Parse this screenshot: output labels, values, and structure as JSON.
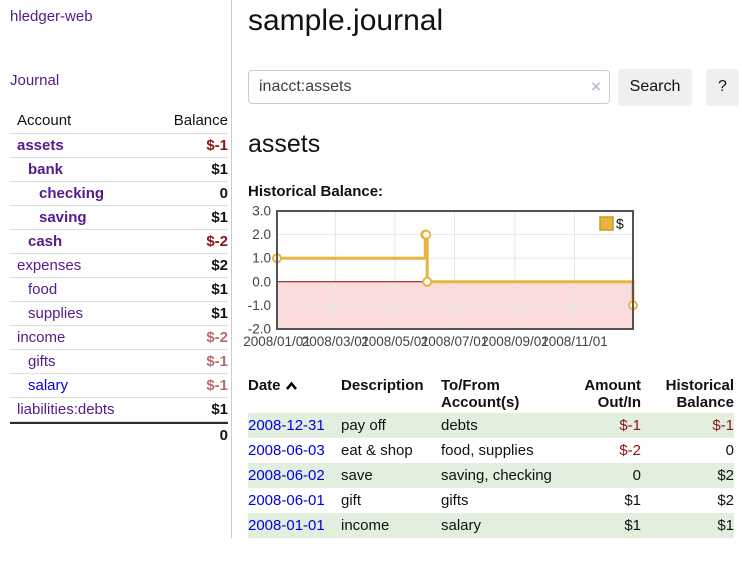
{
  "app": {
    "brand": "hledger-web",
    "nav": {
      "journal": "Journal"
    }
  },
  "sidebar": {
    "headers": {
      "account": "Account",
      "balance": "Balance"
    },
    "accounts": [
      {
        "name": "assets",
        "indent": 1,
        "bold": true,
        "balance": "$-1",
        "balance_style": "neg",
        "link_style": "visited"
      },
      {
        "name": "bank",
        "indent": 2,
        "bold": true,
        "balance": "$1",
        "balance_style": "pos",
        "link_style": "visited"
      },
      {
        "name": "checking",
        "indent": 3,
        "bold": true,
        "balance": "0",
        "balance_style": "pos",
        "link_style": "visited"
      },
      {
        "name": "saving",
        "indent": 3,
        "bold": true,
        "balance": "$1",
        "balance_style": "pos",
        "link_style": "visited"
      },
      {
        "name": "cash",
        "indent": 2,
        "bold": true,
        "balance": "$-2",
        "balance_style": "neg",
        "link_style": "visited"
      },
      {
        "name": "expenses",
        "indent": 1,
        "bold": false,
        "balance": "$2",
        "balance_style": "pos",
        "link_style": "visited"
      },
      {
        "name": "food",
        "indent": 2,
        "bold": false,
        "balance": "$1",
        "balance_style": "pos",
        "link_style": "visited"
      },
      {
        "name": "supplies",
        "indent": 2,
        "bold": false,
        "balance": "$1",
        "balance_style": "pos",
        "link_style": "visited"
      },
      {
        "name": "income",
        "indent": 1,
        "bold": false,
        "balance": "$-2",
        "balance_style": "neg-dim",
        "link_style": "visited"
      },
      {
        "name": "gifts",
        "indent": 2,
        "bold": false,
        "balance": "$-1",
        "balance_style": "neg-dim",
        "link_style": "visited"
      },
      {
        "name": "salary",
        "indent": 2,
        "bold": false,
        "balance": "$-1",
        "balance_style": "neg-dim",
        "link_style": "unvisited"
      },
      {
        "name": "liabilities:debts",
        "indent": 1,
        "bold": false,
        "balance": "$1",
        "balance_style": "pos",
        "link_style": "visited"
      }
    ],
    "total": "0"
  },
  "header": {
    "title": "sample.journal"
  },
  "search": {
    "value": "inacct:assets",
    "clear_icon": "×",
    "button_label": "Search",
    "help_label": "?"
  },
  "account_page": {
    "heading": "assets",
    "chart_label": "Historical Balance:"
  },
  "chart_data": {
    "type": "line",
    "title": "Historical Balance:",
    "x_range": [
      "2008-01-01",
      "2008-12-31"
    ],
    "ylim": [
      -2,
      3
    ],
    "y_tick_labels": [
      "3.0",
      "2.0",
      "1.0",
      "0.0",
      "-1.0",
      "-2.0"
    ],
    "x_ticks": [
      {
        "pos": "2008-01-01",
        "label": "2008/01/01"
      },
      {
        "pos": "2008-03-01",
        "label": "2008/03/01"
      },
      {
        "pos": "2008-05-01",
        "label": "2008/05/01"
      },
      {
        "pos": "2008-07-01",
        "label": "2008/07/01"
      },
      {
        "pos": "2008-09-01",
        "label": "2008/09/01"
      },
      {
        "pos": "2008-11-01",
        "label": "2008/11/01"
      }
    ],
    "series": [
      {
        "name": "$",
        "step": true,
        "points": [
          [
            "2008-01-01",
            1
          ],
          [
            "2008-06-01",
            2
          ],
          [
            "2008-06-02",
            2
          ],
          [
            "2008-06-03",
            0
          ],
          [
            "2008-12-31",
            -1
          ]
        ]
      }
    ],
    "legend": {
      "label": "$",
      "position": "top-right"
    },
    "grid": true,
    "colors": {
      "line": "#e7b53f",
      "legend_border": "#c89b28",
      "marker_fill": "#ffffff",
      "zero_line": "#8b0000",
      "negative_fill": "#fbdcdc",
      "grid": "#e6e6e6",
      "border": "#545454",
      "axis_text": "#434343"
    }
  },
  "register": {
    "headers": {
      "date": "Date",
      "description": "Description",
      "accounts": "To/From Account(s)",
      "amount": "Amount Out/In",
      "balance": "Historical Balance"
    },
    "rows": [
      {
        "date": "2008-12-31",
        "description": "pay off",
        "accounts": "debts",
        "amount": "$-1",
        "amount_style": "neg",
        "balance": "$-1",
        "balance_style": "neg"
      },
      {
        "date": "2008-06-03",
        "description": "eat & shop",
        "accounts": "food, supplies",
        "amount": "$-2",
        "amount_style": "neg",
        "balance": "0",
        "balance_style": "pos"
      },
      {
        "date": "2008-06-02",
        "description": "save",
        "accounts": "saving, checking",
        "amount": "0",
        "amount_style": "pos",
        "balance": "$2",
        "balance_style": "pos"
      },
      {
        "date": "2008-06-01",
        "description": "gift",
        "accounts": "gifts",
        "amount": "$1",
        "amount_style": "pos",
        "balance": "$2",
        "balance_style": "pos"
      },
      {
        "date": "2008-01-01",
        "description": "income",
        "accounts": "salary",
        "amount": "$1",
        "amount_style": "pos",
        "balance": "$1",
        "balance_style": "pos"
      }
    ]
  }
}
